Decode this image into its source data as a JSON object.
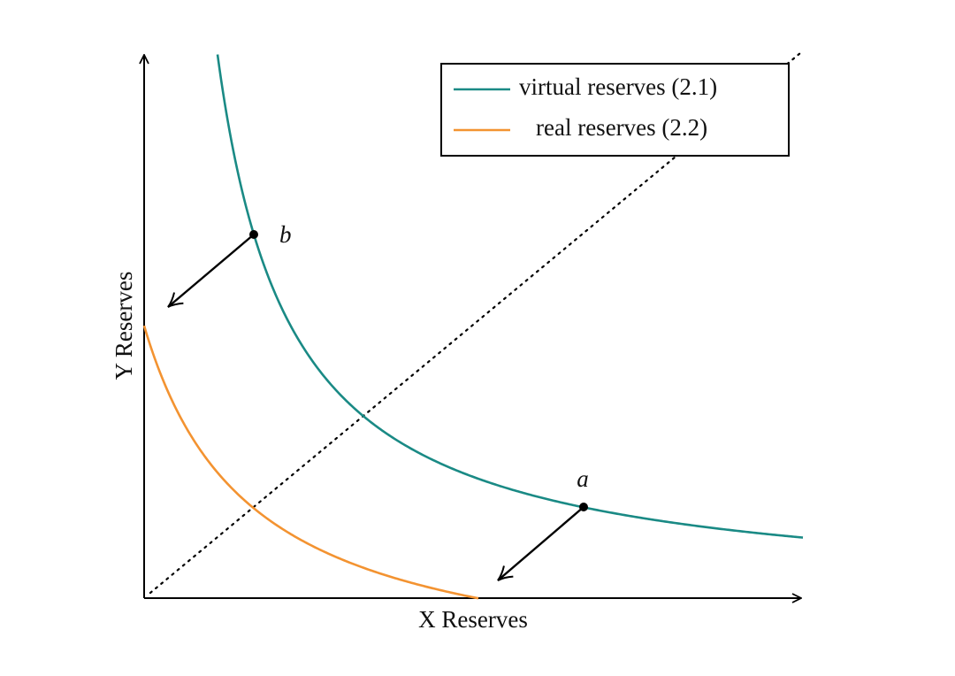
{
  "axes": {
    "x_label": "X Reserves",
    "y_label": "Y Reserves"
  },
  "legend": [
    {
      "name": "virtual reserves (2.1)",
      "color": "#1a8a85"
    },
    {
      "name": "real reserves (2.2)",
      "color": "#f39331"
    }
  ],
  "points": [
    {
      "label": "b"
    },
    {
      "label": "a"
    }
  ]
}
